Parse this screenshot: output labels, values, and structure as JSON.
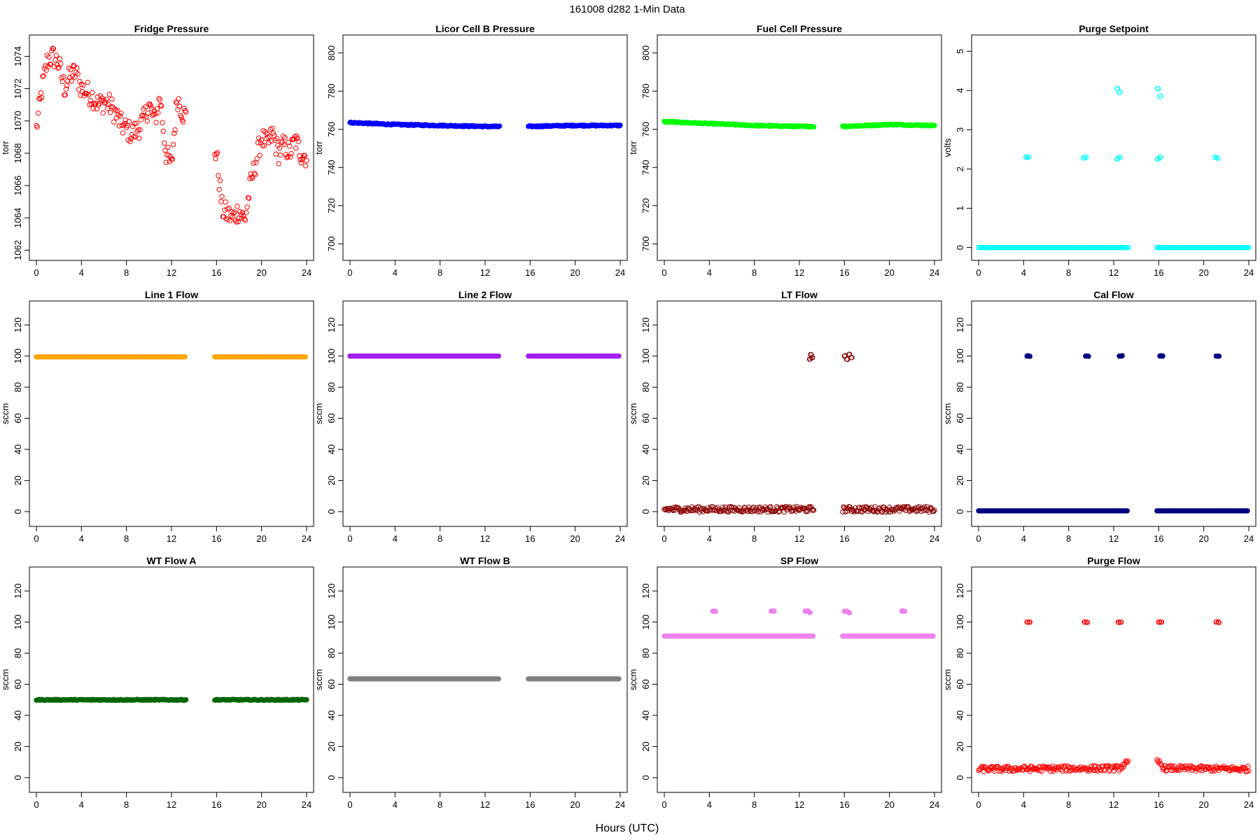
{
  "header": {
    "title": "161008    d282    1-Min Data"
  },
  "footer": {
    "xlabel": "Hours (UTC)"
  },
  "chart_data": [
    {
      "type": "scatter",
      "title": "Fridge Pressure",
      "ylabel": "torr",
      "xlabel": "",
      "xlim": [
        0,
        24
      ],
      "ylim": [
        1061.8,
        1074.8
      ],
      "xticks": [
        0,
        4,
        8,
        12,
        16,
        20,
        24
      ],
      "yticks": [
        1062,
        1064,
        1066,
        1068,
        1070,
        1072,
        1074
      ],
      "color": "#ff0000",
      "marker": "open",
      "gap": [
        13.3,
        15.8
      ],
      "series": [
        {
          "x": [
            0,
            0.5,
            1,
            1.5,
            2,
            2.5,
            3,
            3.5,
            4,
            4.5,
            5,
            5.5,
            6,
            6.5,
            7,
            7.5,
            8,
            8.5,
            9,
            9.5,
            10,
            10.5,
            11,
            11.5,
            12,
            12.5,
            13,
            16,
            16.5,
            17,
            17.5,
            18,
            18.5,
            19,
            19.5,
            20,
            20.5,
            21,
            21.5,
            22,
            22.5,
            23,
            23.5,
            24
          ],
          "y": [
            1069.5,
            1072.0,
            1073.8,
            1074.0,
            1073.5,
            1072.0,
            1072.8,
            1073.0,
            1072.0,
            1071.8,
            1071.5,
            1071.0,
            1071.2,
            1071.0,
            1070.5,
            1069.8,
            1069.5,
            1069.2,
            1069.5,
            1070.0,
            1071.0,
            1070.0,
            1071.5,
            1068.0,
            1067.2,
            1071.5,
            1070.5,
            1068.0,
            1064.5,
            1064.2,
            1064.0,
            1064.5,
            1063.8,
            1066.0,
            1067.5,
            1069.0,
            1068.5,
            1069.2,
            1068.0,
            1068.5,
            1068.0,
            1068.8,
            1068.0,
            1067.8
          ],
          "spread": 0.7
        }
      ]
    },
    {
      "type": "scatter",
      "title": "Licor Cell B Pressure",
      "ylabel": "torr",
      "xlabel": "",
      "xlim": [
        0,
        24
      ],
      "ylim": [
        695,
        805
      ],
      "xticks": [
        0,
        4,
        8,
        12,
        16,
        20,
        24
      ],
      "yticks": [
        700,
        720,
        740,
        760,
        780,
        800
      ],
      "color": "#0000ff",
      "marker": "filled",
      "gap": [
        13.3,
        15.8
      ],
      "series": [
        {
          "x": [
            0,
            4,
            8,
            12,
            13.3,
            15.8,
            18,
            20,
            24
          ],
          "y": [
            763.5,
            762.5,
            762.0,
            761.5,
            761.5,
            761.5,
            761.8,
            762.0,
            762.0
          ],
          "spread": 0.3
        }
      ]
    },
    {
      "type": "scatter",
      "title": "Fuel Cell Pressure",
      "ylabel": "torr",
      "xlabel": "",
      "xlim": [
        0,
        24
      ],
      "ylim": [
        695,
        805
      ],
      "xticks": [
        0,
        4,
        8,
        12,
        16,
        20,
        24
      ],
      "yticks": [
        700,
        720,
        740,
        760,
        780,
        800
      ],
      "color": "#00ff00",
      "marker": "filled",
      "gap": [
        13.3,
        15.8
      ],
      "series": [
        {
          "x": [
            0,
            4,
            8,
            12,
            13.3,
            15.8,
            18,
            20,
            24
          ],
          "y": [
            764.0,
            763.0,
            762.0,
            761.5,
            761.5,
            761.5,
            762.0,
            762.5,
            762.0
          ],
          "spread": 0.3
        }
      ]
    },
    {
      "type": "scatter",
      "title": "Purge Setpoint",
      "ylabel": "volts",
      "xlabel": "",
      "xlim": [
        0,
        24
      ],
      "ylim": [
        -0.15,
        5.2
      ],
      "xticks": [
        0,
        4,
        8,
        12,
        16,
        20,
        24
      ],
      "yticks": [
        0,
        1,
        2,
        3,
        4,
        5
      ],
      "color": "#00ffff",
      "marker": "open",
      "gap": [
        13.3,
        15.8
      ],
      "series": [
        {
          "x": [
            0,
            24
          ],
          "y": [
            0,
            0
          ],
          "spread": 0.0
        },
        {
          "points": [
            [
              4.2,
              2.3
            ],
            [
              4.4,
              2.3
            ],
            [
              9.3,
              2.28
            ],
            [
              9.5,
              2.3
            ],
            [
              12.3,
              2.25
            ],
            [
              12.5,
              2.3
            ],
            [
              15.9,
              2.25
            ],
            [
              16.1,
              2.3
            ],
            [
              21.0,
              2.3
            ],
            [
              21.2,
              2.28
            ],
            [
              12.3,
              4.05
            ],
            [
              12.5,
              3.95
            ],
            [
              15.9,
              4.05
            ],
            [
              16.1,
              3.85
            ]
          ]
        }
      ]
    },
    {
      "type": "scatter",
      "title": "Line 1 Flow",
      "ylabel": "sccm",
      "xlabel": "",
      "xlim": [
        0,
        24
      ],
      "ylim": [
        -5,
        130
      ],
      "xticks": [
        0,
        4,
        8,
        12,
        16,
        20,
        24
      ],
      "yticks": [
        0,
        20,
        40,
        60,
        80,
        100,
        120
      ],
      "color": "#ffa500",
      "marker": "filled",
      "gap": [
        13.3,
        15.8
      ],
      "series": [
        {
          "x": [
            0,
            24
          ],
          "y": [
            99.5,
            99.5
          ],
          "spread": 0.0
        }
      ]
    },
    {
      "type": "scatter",
      "title": "Line 2 Flow",
      "ylabel": "sccm",
      "xlabel": "",
      "xlim": [
        0,
        24
      ],
      "ylim": [
        -5,
        130
      ],
      "xticks": [
        0,
        4,
        8,
        12,
        16,
        20,
        24
      ],
      "yticks": [
        0,
        20,
        40,
        60,
        80,
        100,
        120
      ],
      "color": "#a020f0",
      "marker": "filled",
      "gap": [
        13.3,
        15.8
      ],
      "series": [
        {
          "x": [
            0,
            24
          ],
          "y": [
            100,
            100
          ],
          "spread": 0.0
        }
      ]
    },
    {
      "type": "scatter",
      "title": "LT Flow",
      "ylabel": "sccm",
      "xlabel": "",
      "xlim": [
        0,
        24
      ],
      "ylim": [
        -5,
        130
      ],
      "xticks": [
        0,
        4,
        8,
        12,
        16,
        20,
        24
      ],
      "yticks": [
        0,
        20,
        40,
        60,
        80,
        100,
        120
      ],
      "color": "#8b0000",
      "marker": "open",
      "gap": [
        13.3,
        15.8
      ],
      "series": [
        {
          "x": [
            0,
            24
          ],
          "y": [
            1.5,
            1.5
          ],
          "spread": 1.8
        },
        {
          "points": [
            [
              12.9,
              98
            ],
            [
              13.0,
              101
            ],
            [
              13.1,
              99
            ],
            [
              16.0,
              100
            ],
            [
              16.2,
              98
            ],
            [
              16.4,
              101
            ],
            [
              16.6,
              99
            ]
          ]
        }
      ]
    },
    {
      "type": "scatter",
      "title": "Cal Flow",
      "ylabel": "sccm",
      "xlabel": "",
      "xlim": [
        0,
        24
      ],
      "ylim": [
        -5,
        130
      ],
      "xticks": [
        0,
        4,
        8,
        12,
        16,
        20,
        24
      ],
      "yticks": [
        0,
        20,
        40,
        60,
        80,
        100,
        120
      ],
      "color": "#000080",
      "marker": "filled",
      "gap": [
        13.3,
        15.8
      ],
      "series": [
        {
          "x": [
            0,
            24
          ],
          "y": [
            0.5,
            0.5
          ],
          "spread": 0.0
        },
        {
          "points": [
            [
              4.3,
              100
            ],
            [
              4.5,
              100
            ],
            [
              9.5,
              100
            ],
            [
              9.7,
              100
            ],
            [
              12.5,
              100
            ],
            [
              12.7,
              100
            ],
            [
              16.1,
              100
            ],
            [
              16.3,
              100
            ],
            [
              21.1,
              100
            ],
            [
              21.3,
              100
            ]
          ]
        }
      ]
    },
    {
      "type": "scatter",
      "title": "WT Flow A",
      "ylabel": "sccm",
      "xlabel": "",
      "xlim": [
        0,
        24
      ],
      "ylim": [
        -5,
        130
      ],
      "xticks": [
        0,
        4,
        8,
        12,
        16,
        20,
        24
      ],
      "yticks": [
        0,
        20,
        40,
        60,
        80,
        100,
        120
      ],
      "color": "#006400",
      "marker": "filled",
      "gap": [
        13.3,
        15.8
      ],
      "series": [
        {
          "x": [
            0,
            24
          ],
          "y": [
            50,
            50
          ],
          "spread": 0.3
        }
      ]
    },
    {
      "type": "scatter",
      "title": "WT Flow B",
      "ylabel": "sccm",
      "xlabel": "",
      "xlim": [
        0,
        24
      ],
      "ylim": [
        -5,
        130
      ],
      "xticks": [
        0,
        4,
        8,
        12,
        16,
        20,
        24
      ],
      "yticks": [
        0,
        20,
        40,
        60,
        80,
        100,
        120
      ],
      "color": "#808080",
      "marker": "filled",
      "gap": [
        13.3,
        15.8
      ],
      "series": [
        {
          "x": [
            0,
            24
          ],
          "y": [
            63.5,
            63.5
          ],
          "spread": 0.0
        }
      ]
    },
    {
      "type": "scatter",
      "title": "SP Flow",
      "ylabel": "sccm",
      "xlabel": "",
      "xlim": [
        0,
        24
      ],
      "ylim": [
        -5,
        130
      ],
      "xticks": [
        0,
        4,
        8,
        12,
        16,
        20,
        24
      ],
      "yticks": [
        0,
        20,
        40,
        60,
        80,
        100,
        120
      ],
      "color": "#ee82ee",
      "marker": "filled",
      "gap": [
        13.3,
        15.8
      ],
      "series": [
        {
          "x": [
            0,
            24
          ],
          "y": [
            91,
            91
          ],
          "spread": 0.0
        },
        {
          "points": [
            [
              4.3,
              107
            ],
            [
              4.5,
              107
            ],
            [
              9.5,
              107
            ],
            [
              9.7,
              107
            ],
            [
              12.5,
              107
            ],
            [
              12.7,
              107
            ],
            [
              12.9,
              106
            ],
            [
              16.0,
              107
            ],
            [
              16.2,
              107
            ],
            [
              16.4,
              106
            ],
            [
              21.1,
              107
            ],
            [
              21.3,
              107
            ]
          ]
        }
      ]
    },
    {
      "type": "scatter",
      "title": "Purge Flow",
      "ylabel": "sccm",
      "xlabel": "",
      "xlim": [
        0,
        24
      ],
      "ylim": [
        -5,
        130
      ],
      "xticks": [
        0,
        4,
        8,
        12,
        16,
        20,
        24
      ],
      "yticks": [
        0,
        20,
        40,
        60,
        80,
        100,
        120
      ],
      "color": "#ff0000",
      "marker": "open",
      "gap": [
        13.3,
        15.8
      ],
      "series": [
        {
          "x": [
            0,
            12.5,
            13.0,
            16.0,
            16.5,
            24
          ],
          "y": [
            5.5,
            6.0,
            9.0,
            10.0,
            6.0,
            5.5
          ],
          "spread": 1.8
        },
        {
          "points": [
            [
              4.3,
              100
            ],
            [
              4.5,
              100
            ],
            [
              9.4,
              100
            ],
            [
              9.6,
              100
            ],
            [
              12.4,
              100
            ],
            [
              12.6,
              100
            ],
            [
              16.0,
              100
            ],
            [
              16.2,
              100
            ],
            [
              21.1,
              100
            ],
            [
              21.3,
              100
            ]
          ]
        }
      ]
    }
  ]
}
